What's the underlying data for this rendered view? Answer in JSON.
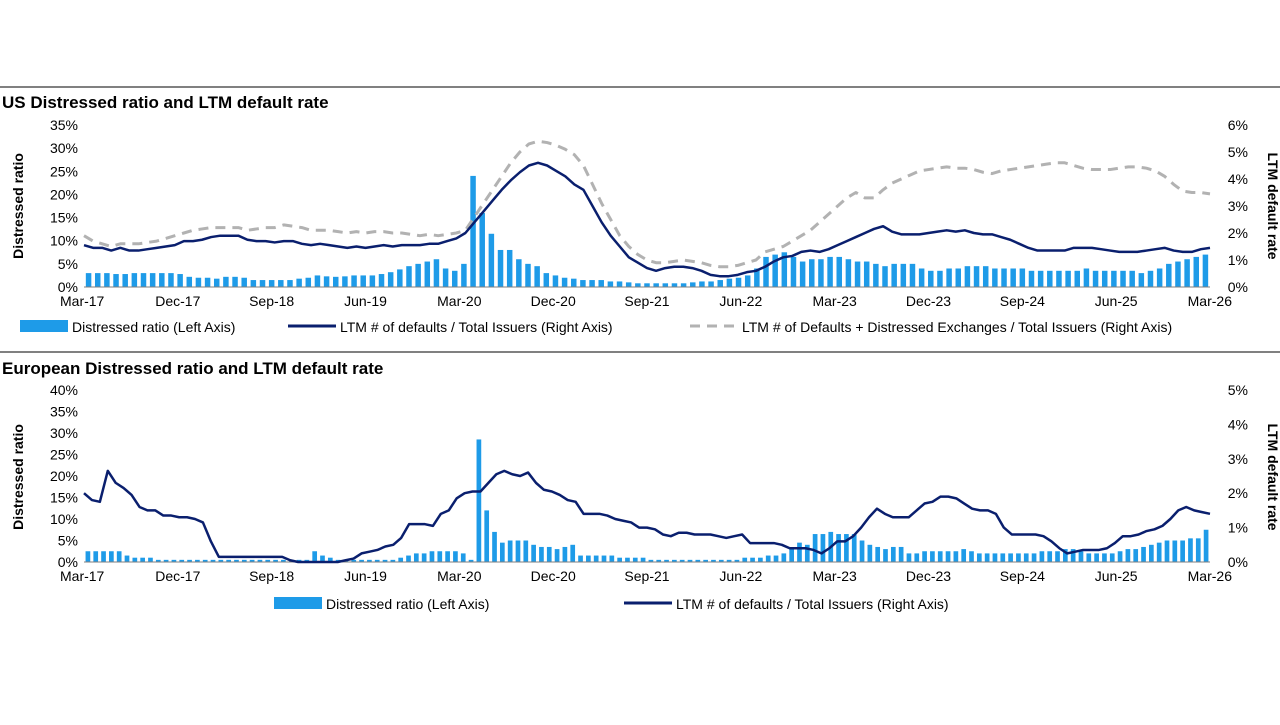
{
  "chart_data": [
    {
      "type": "bar+line",
      "title": "US Distressed ratio and LTM default rate",
      "ylabel_left": "Distressed ratio",
      "ylabel_right": "LTM default rate",
      "ylim_left": [
        0,
        35
      ],
      "ylim_right": [
        0,
        6
      ],
      "yticks_left": [
        "0%",
        "5%",
        "10%",
        "15%",
        "20%",
        "25%",
        "30%",
        "35%"
      ],
      "yticks_right": [
        "0%",
        "1%",
        "2%",
        "3%",
        "4%",
        "5%",
        "6%"
      ],
      "xticks": [
        "Mar-17",
        "Dec-17",
        "Sep-18",
        "Jun-19",
        "Mar-20",
        "Dec-20",
        "Sep-21",
        "Jun-22",
        "Mar-23",
        "Dec-23",
        "Sep-24",
        "Jun-25",
        "Mar-26"
      ],
      "x_start": "Mar-17",
      "x_end": "Mar-26",
      "legend_placement": "bottom",
      "colors": {
        "bar": "#1e9be8",
        "line": "#0a1f6e",
        "dashed": "#b2b2b2"
      },
      "series": [
        {
          "name": "Distressed ratio (Left Axis)",
          "kind": "bar",
          "axis": "left",
          "values": [
            3.0,
            3.0,
            3.0,
            2.8,
            2.8,
            3.0,
            3.0,
            3.0,
            3.0,
            3.0,
            2.8,
            2.2,
            2.0,
            2.0,
            1.8,
            2.2,
            2.2,
            2.0,
            1.5,
            1.5,
            1.5,
            1.5,
            1.5,
            1.8,
            2.0,
            2.5,
            2.3,
            2.2,
            2.3,
            2.5,
            2.5,
            2.5,
            2.8,
            3.2,
            3.8,
            4.5,
            5.0,
            5.5,
            6.0,
            4.0,
            3.5,
            5.0,
            24.0,
            16.0,
            11.5,
            8.0,
            8.0,
            6.0,
            5.0,
            4.5,
            3.0,
            2.5,
            2.0,
            1.8,
            1.5,
            1.5,
            1.5,
            1.2,
            1.2,
            1.0,
            0.8,
            0.8,
            0.8,
            0.8,
            0.8,
            0.8,
            1.0,
            1.2,
            1.2,
            1.5,
            1.8,
            2.0,
            2.5,
            4.0,
            6.5,
            7.0,
            7.5,
            6.5,
            5.5,
            6.0,
            6.0,
            6.5,
            6.5,
            6.0,
            5.5,
            5.5,
            5.0,
            4.5,
            5.0,
            5.0,
            5.0,
            4.0,
            3.5,
            3.5,
            4.0,
            4.0,
            4.5,
            4.5,
            4.5,
            4.0,
            4.0,
            4.0,
            4.0,
            3.5,
            3.5,
            3.5,
            3.5,
            3.5,
            3.5,
            4.0,
            3.5,
            3.5,
            3.5,
            3.5,
            3.5,
            3.0,
            3.5,
            4.0,
            5.0,
            5.5,
            6.0,
            6.5,
            7.0
          ]
        },
        {
          "name": "LTM # of defaults / Total Issuers (Right Axis)",
          "kind": "line",
          "axis": "right",
          "values": [
            1.55,
            1.45,
            1.45,
            1.35,
            1.45,
            1.35,
            1.35,
            1.4,
            1.45,
            1.5,
            1.55,
            1.7,
            1.7,
            1.75,
            1.85,
            1.9,
            1.9,
            1.9,
            1.75,
            1.7,
            1.7,
            1.65,
            1.7,
            1.7,
            1.6,
            1.55,
            1.6,
            1.55,
            1.5,
            1.45,
            1.5,
            1.45,
            1.5,
            1.55,
            1.5,
            1.55,
            1.55,
            1.55,
            1.6,
            1.6,
            1.7,
            1.8,
            2.0,
            2.4,
            2.8,
            3.2,
            3.6,
            3.95,
            4.25,
            4.5,
            4.6,
            4.5,
            4.3,
            4.1,
            3.8,
            3.6,
            3.0,
            2.4,
            1.9,
            1.5,
            1.1,
            0.9,
            0.7,
            0.6,
            0.7,
            0.75,
            0.75,
            0.7,
            0.6,
            0.45,
            0.4,
            0.4,
            0.45,
            0.55,
            0.6,
            0.75,
            0.95,
            1.1,
            1.15,
            1.3,
            1.35,
            1.3,
            1.4,
            1.55,
            1.7,
            1.85,
            2.0,
            2.15,
            2.25,
            2.05,
            1.95,
            1.95,
            1.95,
            2.0,
            2.05,
            2.1,
            2.05,
            2.1,
            2.0,
            1.95,
            1.95,
            1.85,
            1.75,
            1.6,
            1.45,
            1.35,
            1.35,
            1.35,
            1.35,
            1.45,
            1.45,
            1.45,
            1.4,
            1.35,
            1.3,
            1.3,
            1.3,
            1.35,
            1.4,
            1.45,
            1.35,
            1.3,
            1.3,
            1.4,
            1.45
          ]
        },
        {
          "name": "LTM # of Defaults + Distressed Exchanges / Total Issuers (Right Axis)",
          "kind": "dashed-line",
          "axis": "right",
          "values": [
            1.9,
            1.7,
            1.6,
            1.5,
            1.6,
            1.6,
            1.6,
            1.65,
            1.7,
            1.8,
            1.9,
            2.0,
            2.1,
            2.15,
            2.2,
            2.2,
            2.2,
            2.2,
            2.1,
            2.15,
            2.2,
            2.2,
            2.3,
            2.25,
            2.2,
            2.1,
            2.1,
            2.1,
            2.05,
            2.0,
            2.05,
            2.0,
            2.05,
            2.05,
            2.0,
            2.0,
            1.95,
            1.9,
            1.95,
            1.9,
            1.95,
            2.0,
            2.1,
            2.6,
            3.1,
            3.6,
            4.1,
            4.6,
            5.0,
            5.3,
            5.4,
            5.35,
            5.25,
            5.1,
            4.9,
            4.5,
            3.8,
            3.1,
            2.5,
            1.9,
            1.5,
            1.2,
            1.0,
            0.9,
            0.9,
            0.95,
            1.0,
            0.95,
            0.9,
            0.8,
            0.75,
            0.75,
            0.8,
            0.9,
            1.0,
            1.3,
            1.4,
            1.5,
            1.7,
            1.9,
            2.1,
            2.4,
            2.7,
            3.0,
            3.3,
            3.5,
            3.3,
            3.3,
            3.6,
            3.85,
            4.0,
            4.15,
            4.3,
            4.35,
            4.4,
            4.45,
            4.4,
            4.4,
            4.35,
            4.25,
            4.2,
            4.3,
            4.35,
            4.4,
            4.45,
            4.5,
            4.55,
            4.6,
            4.6,
            4.5,
            4.4,
            4.35,
            4.35,
            4.35,
            4.4,
            4.45,
            4.45,
            4.4,
            4.3,
            4.1,
            3.8,
            3.55,
            3.5,
            3.5,
            3.45
          ]
        }
      ]
    },
    {
      "type": "bar+line",
      "title": "European Distressed ratio and LTM default rate",
      "ylabel_left": "Distressed ratio",
      "ylabel_right": "LTM default rate",
      "ylim_left": [
        0,
        40
      ],
      "ylim_right": [
        0,
        5
      ],
      "yticks_left": [
        "0%",
        "5%",
        "10%",
        "15%",
        "20%",
        "25%",
        "30%",
        "35%",
        "40%"
      ],
      "yticks_right": [
        "0%",
        "1%",
        "2%",
        "3%",
        "4%",
        "5%"
      ],
      "xticks": [
        "Mar-17",
        "Dec-17",
        "Sep-18",
        "Jun-19",
        "Mar-20",
        "Dec-20",
        "Sep-21",
        "Jun-22",
        "Mar-23",
        "Dec-23",
        "Sep-24",
        "Jun-25",
        "Mar-26"
      ],
      "x_start": "Mar-17",
      "x_end": "Mar-26",
      "legend_placement": "bottom",
      "colors": {
        "bar": "#1e9be8",
        "line": "#0a1f6e"
      },
      "series": [
        {
          "name": "Distressed ratio (Left Axis)",
          "kind": "bar",
          "axis": "left",
          "values": [
            2.5,
            2.5,
            2.5,
            2.5,
            2.5,
            1.5,
            1.0,
            1.0,
            1.0,
            0.5,
            0.5,
            0.5,
            0.5,
            0.5,
            0.5,
            0.5,
            0.5,
            0.5,
            0.5,
            0.5,
            0.5,
            0.5,
            0.5,
            0.5,
            0.5,
            0.5,
            0.5,
            0.5,
            0.5,
            2.5,
            1.5,
            1.0,
            0.5,
            0.5,
            0.5,
            0.5,
            0.5,
            0.5,
            0.5,
            0.5,
            1.0,
            1.5,
            2.0,
            2.0,
            2.5,
            2.5,
            2.5,
            2.5,
            2.0,
            0.5,
            28.5,
            12.0,
            7.0,
            4.5,
            5.0,
            5.0,
            5.0,
            4.0,
            3.5,
            3.5,
            3.0,
            3.5,
            4.0,
            1.5,
            1.5,
            1.5,
            1.5,
            1.5,
            1.0,
            1.0,
            1.0,
            1.0,
            0.5,
            0.5,
            0.5,
            0.5,
            0.5,
            0.5,
            0.5,
            0.5,
            0.5,
            0.5,
            0.5,
            0.5,
            1.0,
            1.0,
            1.0,
            1.5,
            1.5,
            2.0,
            3.0,
            4.5,
            4.0,
            6.5,
            6.5,
            7.0,
            6.5,
            6.5,
            6.5,
            5.0,
            4.0,
            3.5,
            3.0,
            3.5,
            3.5,
            2.0,
            2.0,
            2.5,
            2.5,
            2.5,
            2.5,
            2.5,
            3.0,
            2.5,
            2.0,
            2.0,
            2.0,
            2.0,
            2.0,
            2.0,
            2.0,
            2.0,
            2.5,
            2.5,
            2.5,
            3.0,
            3.0,
            2.5,
            2.0,
            2.0,
            2.0,
            2.0,
            2.5,
            3.0,
            3.0,
            3.5,
            4.0,
            4.5,
            5.0,
            5.0,
            5.0,
            5.5,
            5.5,
            7.5
          ]
        },
        {
          "name": "LTM # of defaults / Total Issuers (Right Axis)",
          "kind": "line",
          "axis": "right",
          "values": [
            2.0,
            1.8,
            1.75,
            2.65,
            2.3,
            2.15,
            1.95,
            1.6,
            1.5,
            1.5,
            1.35,
            1.35,
            1.3,
            1.3,
            1.25,
            1.15,
            0.6,
            0.15,
            0.15,
            0.15,
            0.15,
            0.15,
            0.15,
            0.15,
            0.15,
            0.15,
            0.05,
            0.0,
            0.0,
            0.0,
            0.0,
            0.0,
            0.0,
            0.05,
            0.1,
            0.25,
            0.3,
            0.35,
            0.45,
            0.5,
            0.7,
            1.1,
            1.1,
            1.1,
            1.05,
            1.4,
            1.5,
            1.85,
            2.0,
            2.05,
            2.05,
            2.3,
            2.55,
            2.65,
            2.55,
            2.5,
            2.6,
            2.3,
            2.1,
            2.05,
            1.95,
            1.8,
            1.75,
            1.4,
            1.4,
            1.4,
            1.35,
            1.25,
            1.2,
            1.15,
            1.0,
            1.0,
            0.95,
            0.8,
            0.75,
            0.85,
            0.85,
            0.8,
            0.8,
            0.8,
            0.75,
            0.7,
            0.75,
            0.8,
            0.55,
            0.55,
            0.55,
            0.55,
            0.5,
            0.4,
            0.4,
            0.4,
            0.35,
            0.25,
            0.4,
            0.6,
            0.6,
            0.75,
            1.0,
            1.3,
            1.55,
            1.4,
            1.3,
            1.3,
            1.3,
            1.5,
            1.7,
            1.75,
            1.9,
            1.9,
            1.85,
            1.7,
            1.55,
            1.5,
            1.5,
            1.4,
            1.0,
            0.8,
            0.8,
            0.8,
            0.8,
            0.75,
            0.6,
            0.4,
            0.25,
            0.3,
            0.35,
            0.35,
            0.35,
            0.4,
            0.55,
            0.75,
            0.75,
            0.8,
            0.9,
            0.95,
            1.05,
            1.25,
            1.5,
            1.6,
            1.5,
            1.45,
            1.4
          ]
        }
      ]
    }
  ]
}
